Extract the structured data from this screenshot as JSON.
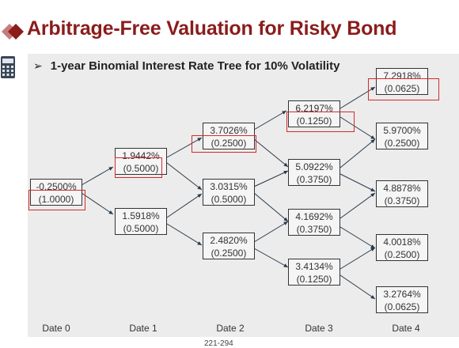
{
  "slide": {
    "title": "Arbitrage-Free Valuation for Risky Bond",
    "subtitle": "1-year Binomial Interest Rate Tree for 10% Volatility",
    "bullet_glyph": "➢",
    "footer": "221-294",
    "accent_color": "#8b1c1c",
    "highlight_color": "#d42a2a"
  },
  "dates": [
    "Date 0",
    "Date 1",
    "Date 2",
    "Date 3",
    "Date 4"
  ],
  "tree": {
    "d0": [
      {
        "rate": "-0.2500%",
        "prob": "(1.0000)"
      }
    ],
    "d1": [
      {
        "rate": "1.9442%",
        "prob": "(0.5000)"
      },
      {
        "rate": "1.5918%",
        "prob": "(0.5000)"
      }
    ],
    "d2": [
      {
        "rate": "3.7026%",
        "prob": "(0.2500)"
      },
      {
        "rate": "3.0315%",
        "prob": "(0.5000)"
      },
      {
        "rate": "2.4820%",
        "prob": "(0.2500)"
      }
    ],
    "d3": [
      {
        "rate": "6.2197%",
        "prob": "(0.1250)"
      },
      {
        "rate": "5.0922%",
        "prob": "(0.3750)"
      },
      {
        "rate": "4.1692%",
        "prob": "(0.3750)"
      },
      {
        "rate": "3.4134%",
        "prob": "(0.1250)"
      }
    ],
    "d4": [
      {
        "rate": "7.2918%",
        "prob": "(0.0625)"
      },
      {
        "rate": "5.9700%",
        "prob": "(0.2500)"
      },
      {
        "rate": "4.8878%",
        "prob": "(0.3750)"
      },
      {
        "rate": "4.0018%",
        "prob": "(0.2500)"
      },
      {
        "rate": "3.2764%",
        "prob": "(0.0625)"
      }
    ]
  }
}
